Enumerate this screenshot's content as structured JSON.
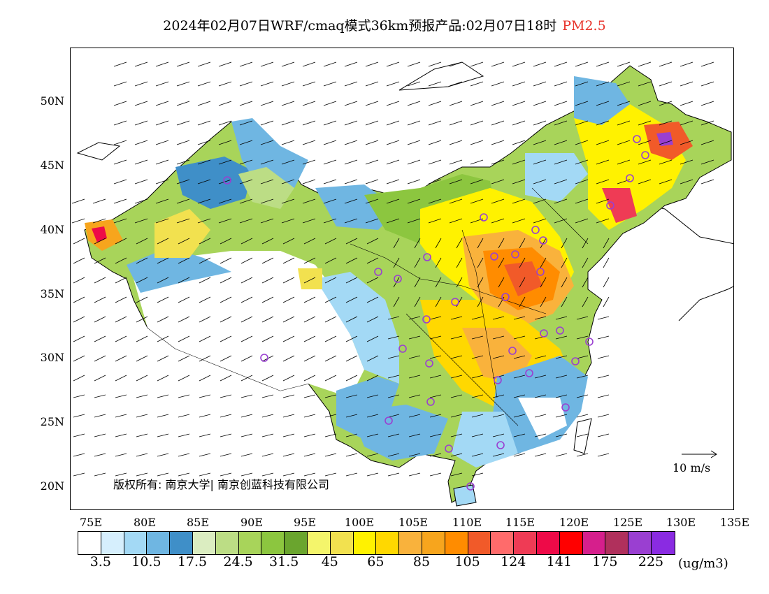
{
  "title": {
    "main": "2024年02月07日WRF/cmaq模式36km预报产品:02月07日18时",
    "pollutant": "PM2.5",
    "pollutant_color": "#e8332b"
  },
  "axes": {
    "lat_labels": [
      "50N",
      "45N",
      "40N",
      "35N",
      "30N",
      "25N",
      "20N"
    ],
    "lon_labels": [
      "75E",
      "80E",
      "85E",
      "90E",
      "95E",
      "100E",
      "105E",
      "110E",
      "115E",
      "120E",
      "125E",
      "130E",
      "135E"
    ]
  },
  "copyright": "版权所有: 南京大学| 南京创蓝科技有限公司",
  "wind_reference": "10 m/s",
  "colorbar": {
    "colors": [
      "#ffffff",
      "#d6effd",
      "#a3d9f5",
      "#6fb6e2",
      "#3f8fc8",
      "#dbedc1",
      "#bcdd85",
      "#a8d45a",
      "#8cc63f",
      "#6aa52e",
      "#f4f56b",
      "#f2e14f",
      "#fff200",
      "#ffd800",
      "#f9b23c",
      "#f7a51d",
      "#ff8c00",
      "#f15a29",
      "#ff6b6b",
      "#ef3b55",
      "#ee0a48",
      "#ff0000",
      "#d61f8c",
      "#b0305c",
      "#9a3fd1",
      "#8a2be2"
    ],
    "labels": [
      "3.5",
      "10.5",
      "17.5",
      "24.5",
      "31.5",
      "45",
      "65",
      "85",
      "105",
      "124",
      "141",
      "175",
      "225"
    ],
    "units": "(ug/m3)"
  }
}
